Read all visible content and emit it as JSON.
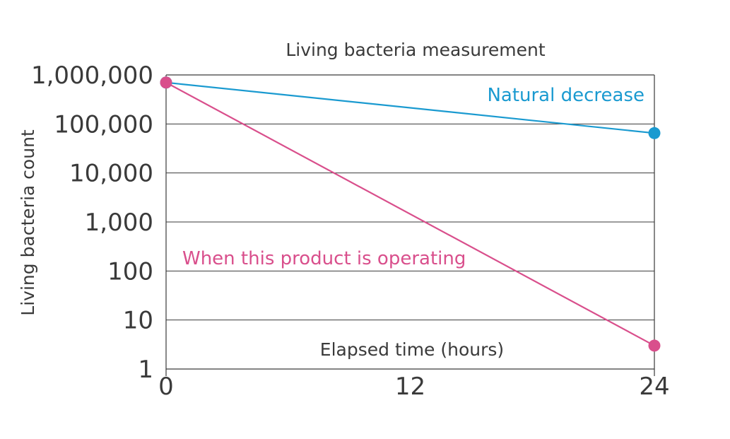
{
  "chart_data": {
    "type": "line",
    "title": "Living bacteria measurement",
    "xlabel": "Elapsed time (hours)",
    "ylabel": "Living bacteria count",
    "y_scale": "log",
    "ylim": [
      1,
      1000000
    ],
    "xlim": [
      0,
      24
    ],
    "x_ticks": [
      {
        "value": 0,
        "label": "0"
      },
      {
        "value": 12,
        "label": "12"
      },
      {
        "value": 24,
        "label": "24"
      }
    ],
    "y_ticks": [
      {
        "value": 1,
        "label": "1"
      },
      {
        "value": 10,
        "label": "10"
      },
      {
        "value": 100,
        "label": "100"
      },
      {
        "value": 1000,
        "label": "1,000"
      },
      {
        "value": 10000,
        "label": "10,000"
      },
      {
        "value": 100000,
        "label": "100,000"
      },
      {
        "value": 1000000,
        "label": "1,000,000"
      }
    ],
    "grid": "horizontal",
    "series": [
      {
        "name": "Natural decrease",
        "color": "#1A9AD0",
        "x": [
          0,
          24
        ],
        "y": [
          700000,
          65000
        ]
      },
      {
        "name": "When this product is operating",
        "color": "#D94F8C",
        "x": [
          0,
          24
        ],
        "y": [
          700000,
          3
        ]
      }
    ]
  }
}
